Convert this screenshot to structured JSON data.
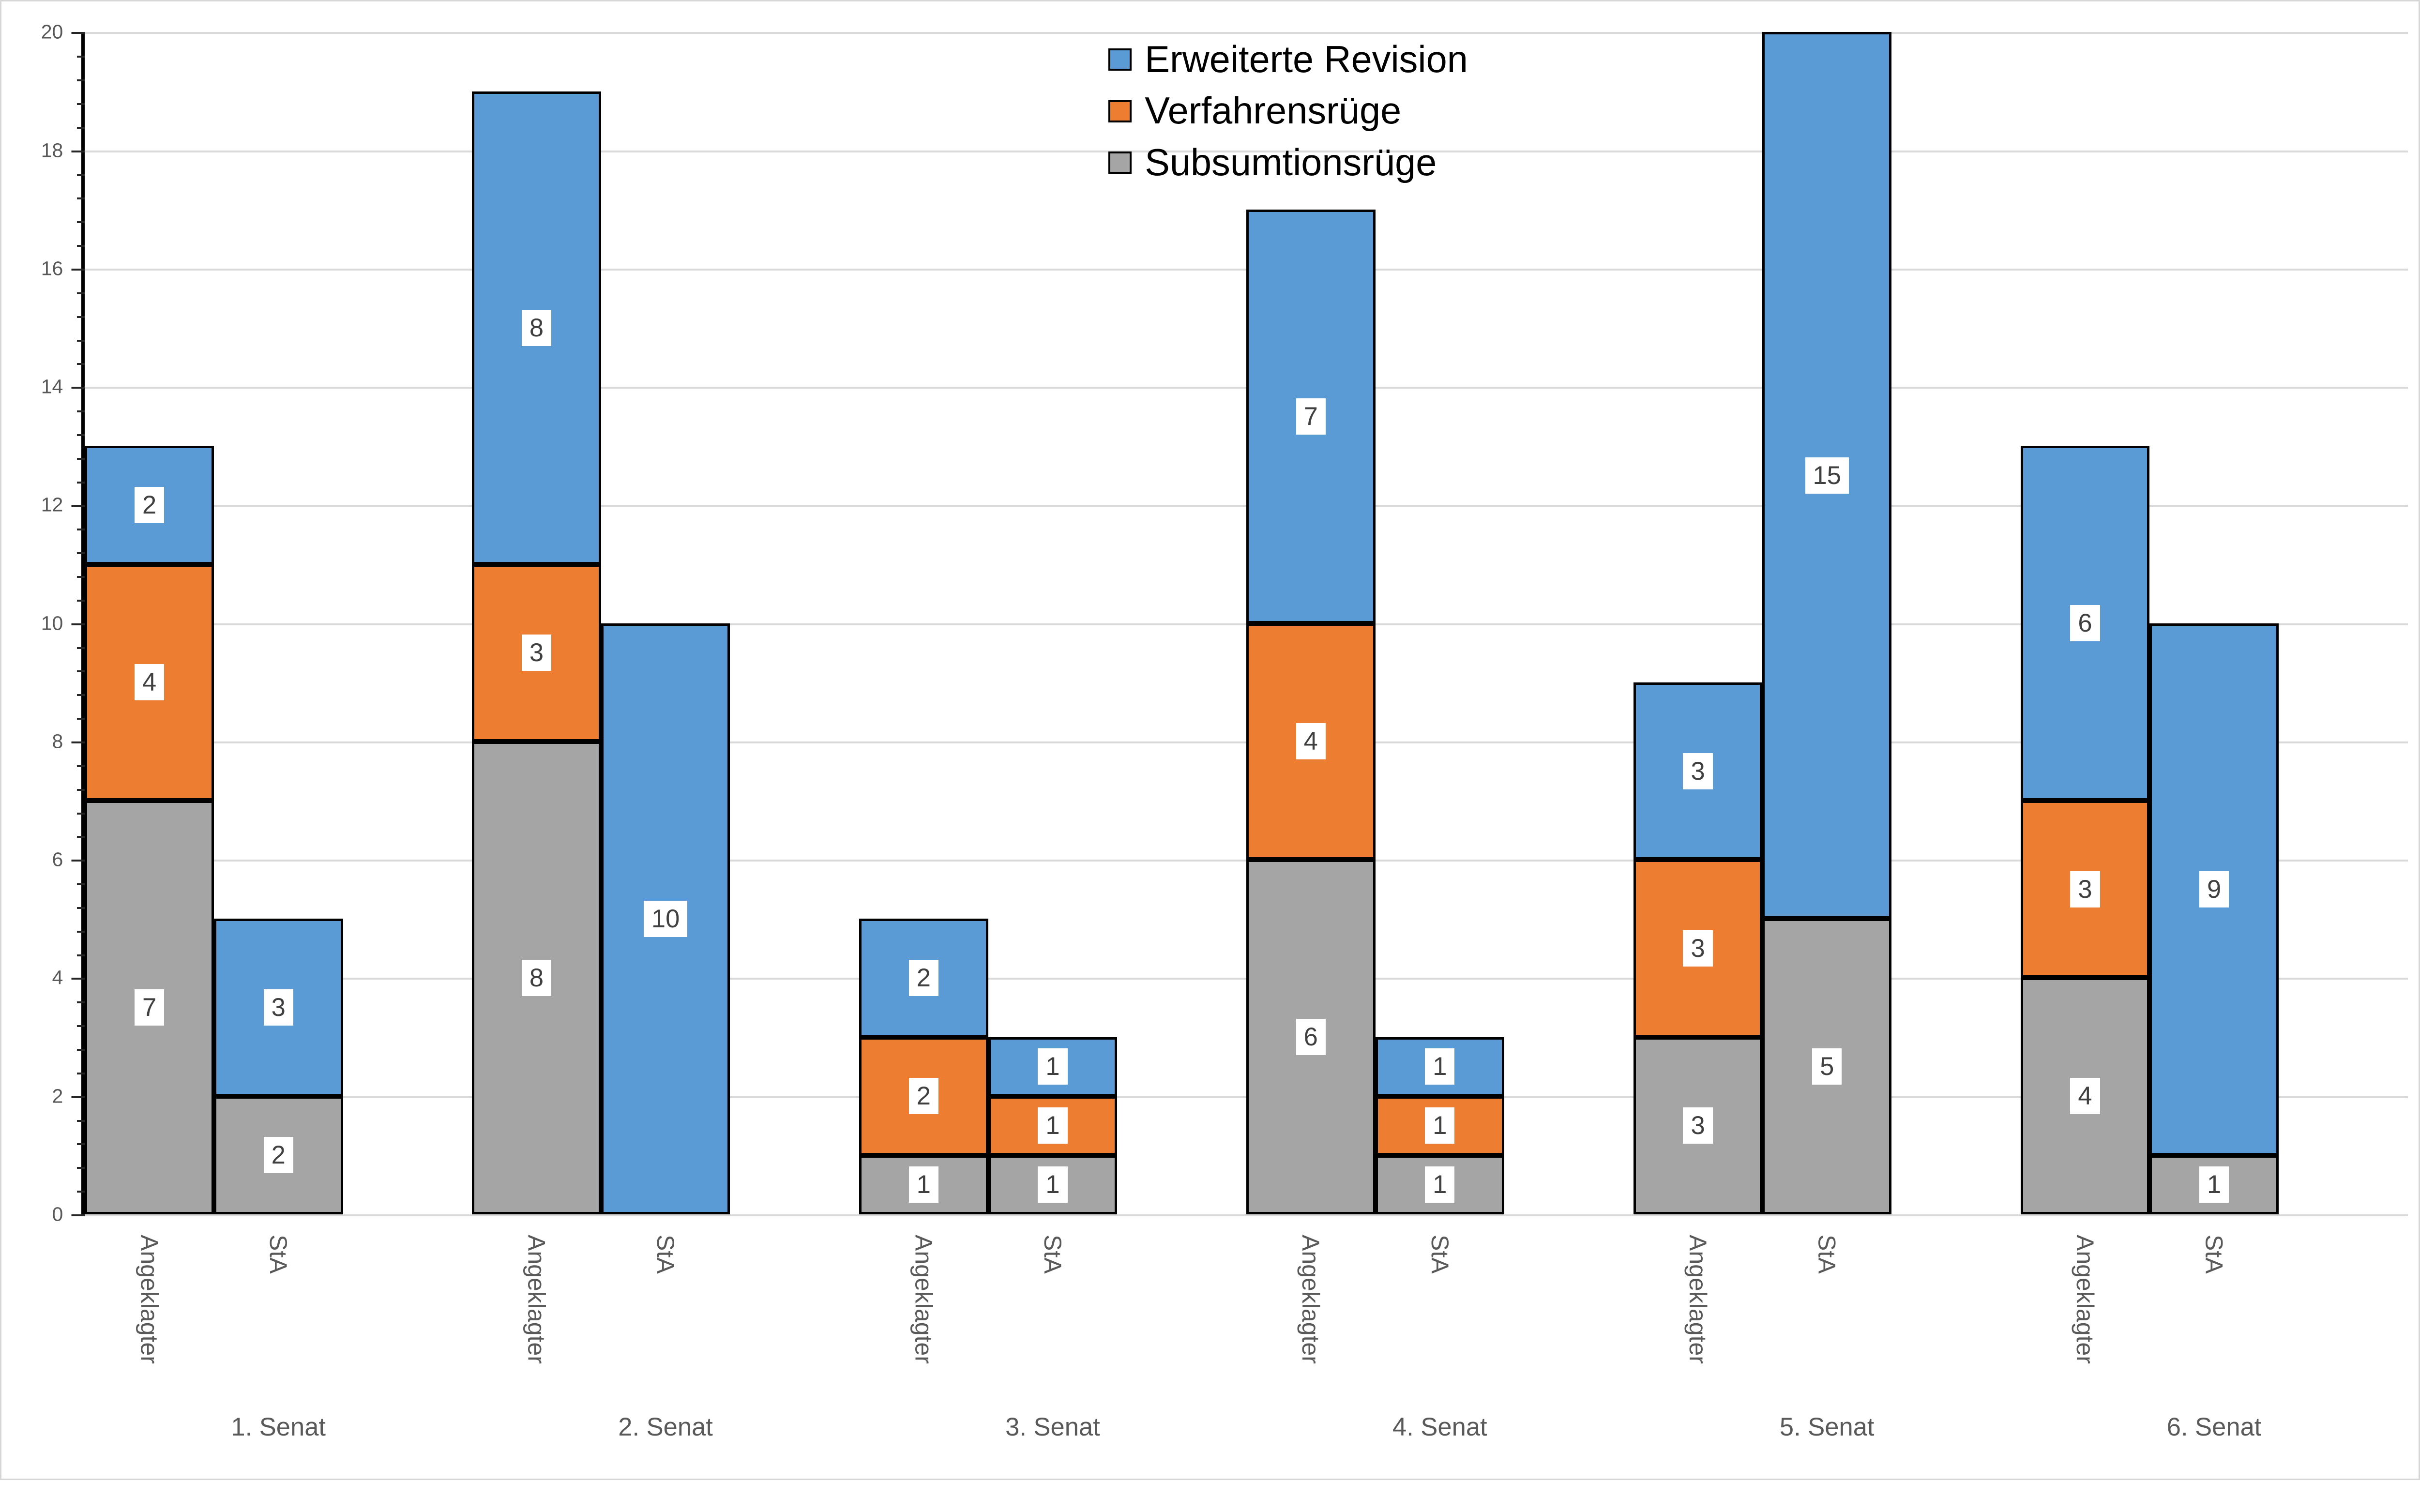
{
  "chart_data": {
    "type": "bar",
    "stacked": true,
    "title": "",
    "xlabel": "",
    "ylabel": "",
    "ylim": [
      0,
      20
    ],
    "y_major_unit": 2,
    "y_minor_unit": 0.4,
    "grid": true,
    "legend_position": "top-center",
    "series": [
      {
        "key": "sub",
        "name": "Subsumtionsrüge",
        "color": "#A5A5A5"
      },
      {
        "key": "verf",
        "name": "Verfahrensrüge",
        "color": "#ED7D31"
      },
      {
        "key": "erw",
        "name": "Erweiterte Revision",
        "color": "#5B9BD5"
      }
    ],
    "legend": [
      {
        "label": "Erweiterte Revision",
        "color": "#5B9BD5"
      },
      {
        "label": "Verfahrensrüge",
        "color": "#ED7D31"
      },
      {
        "label": "Subsumtionsrüge",
        "color": "#A5A5A5"
      }
    ],
    "groups": [
      {
        "label": "1. Senat",
        "bars": [
          {
            "label": "Angeklagter",
            "values": {
              "sub": 7,
              "verf": 4,
              "erw": 2
            }
          },
          {
            "label": "StA",
            "values": {
              "sub": 2,
              "verf": 0,
              "erw": 3
            }
          }
        ]
      },
      {
        "label": "2. Senat",
        "bars": [
          {
            "label": "Angeklagter",
            "values": {
              "sub": 8,
              "verf": 3,
              "erw": 8
            }
          },
          {
            "label": "StA",
            "values": {
              "sub": 0,
              "verf": 0,
              "erw": 10
            }
          }
        ]
      },
      {
        "label": "3. Senat",
        "bars": [
          {
            "label": "Angeklagter",
            "values": {
              "sub": 1,
              "verf": 2,
              "erw": 2
            }
          },
          {
            "label": "StA",
            "values": {
              "sub": 1,
              "verf": 1,
              "erw": 1
            }
          }
        ]
      },
      {
        "label": "4. Senat",
        "bars": [
          {
            "label": "Angeklagter",
            "values": {
              "sub": 6,
              "verf": 4,
              "erw": 7
            }
          },
          {
            "label": "StA",
            "values": {
              "sub": 1,
              "verf": 1,
              "erw": 1
            }
          }
        ]
      },
      {
        "label": "5. Senat",
        "bars": [
          {
            "label": "Angeklagter",
            "values": {
              "sub": 3,
              "verf": 3,
              "erw": 3
            }
          },
          {
            "label": "StA",
            "values": {
              "sub": 5,
              "verf": 0,
              "erw": 15
            }
          }
        ]
      },
      {
        "label": "6. Senat",
        "bars": [
          {
            "label": "Angeklagter",
            "values": {
              "sub": 4,
              "verf": 3,
              "erw": 6
            }
          },
          {
            "label": "StA",
            "values": {
              "sub": 1,
              "verf": 0,
              "erw": 9
            }
          }
        ]
      }
    ],
    "y_tick_labels": [
      "0",
      "2",
      "4",
      "6",
      "8",
      "10",
      "12",
      "14",
      "16",
      "18",
      "20"
    ]
  },
  "colors": {
    "gridline": "#D9D9D9",
    "axis_line": "#000000",
    "tick": "#262626",
    "axis_text": "#595959",
    "data_label_text": "#404040",
    "data_label_bg": "#FFFFFF",
    "segment_border": "#000000",
    "background": "#FFFFFF",
    "frame_border": "#D6D6D6"
  }
}
